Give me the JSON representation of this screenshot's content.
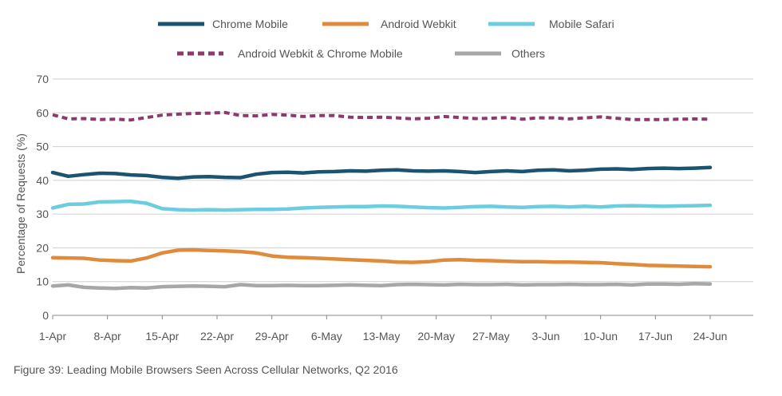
{
  "caption": "Figure 39: Leading Mobile Browsers Seen Across Cellular Networks, Q2 2016",
  "chart_data": {
    "type": "line",
    "ylabel": "Percentage of Requests (%)",
    "xlabel": "",
    "ylim": [
      0,
      70
    ],
    "yticks": [
      0,
      10,
      20,
      30,
      40,
      50,
      60,
      70
    ],
    "grid": true,
    "legend_position": "top",
    "x_tick_labels": [
      "1-Apr",
      "8-Apr",
      "15-Apr",
      "22-Apr",
      "29-Apr",
      "6-May",
      "13-May",
      "20-May",
      "27-May",
      "3-Jun",
      "10-Jun",
      "17-Jun",
      "24-Jun"
    ],
    "x_dates": [
      "1-Apr",
      "3-Apr",
      "5-Apr",
      "7-Apr",
      "9-Apr",
      "11-Apr",
      "13-Apr",
      "15-Apr",
      "17-Apr",
      "19-Apr",
      "21-Apr",
      "23-Apr",
      "25-Apr",
      "27-Apr",
      "29-Apr",
      "1-May",
      "3-May",
      "5-May",
      "7-May",
      "9-May",
      "11-May",
      "13-May",
      "15-May",
      "17-May",
      "19-May",
      "21-May",
      "23-May",
      "25-May",
      "27-May",
      "29-May",
      "31-May",
      "2-Jun",
      "4-Jun",
      "6-Jun",
      "8-Jun",
      "10-Jun",
      "12-Jun",
      "14-Jun",
      "16-Jun",
      "18-Jun",
      "20-Jun",
      "22-Jun",
      "24-Jun"
    ],
    "series": [
      {
        "name": "Chrome Mobile",
        "color": "#1b5470",
        "dashed": false,
        "values": [
          42.3,
          41.2,
          41.7,
          42.1,
          42.0,
          41.6,
          41.4,
          40.9,
          40.6,
          41.0,
          41.1,
          40.9,
          40.8,
          41.8,
          42.3,
          42.4,
          42.2,
          42.5,
          42.6,
          42.8,
          42.7,
          43.0,
          43.1,
          42.8,
          42.7,
          42.8,
          42.6,
          42.3,
          42.6,
          42.8,
          42.6,
          43.0,
          43.1,
          42.8,
          43.0,
          43.3,
          43.4,
          43.2,
          43.5,
          43.6,
          43.5,
          43.6,
          43.8
        ]
      },
      {
        "name": "Android Webkit",
        "color": "#e08a3c",
        "dashed": false,
        "values": [
          17.1,
          17.0,
          16.9,
          16.4,
          16.2,
          16.1,
          17.0,
          18.5,
          19.3,
          19.4,
          19.2,
          19.1,
          18.9,
          18.5,
          17.6,
          17.2,
          17.1,
          16.9,
          16.7,
          16.5,
          16.3,
          16.1,
          15.8,
          15.7,
          15.9,
          16.4,
          16.5,
          16.3,
          16.2,
          16.0,
          15.9,
          15.9,
          15.8,
          15.8,
          15.7,
          15.6,
          15.3,
          15.1,
          14.8,
          14.7,
          14.6,
          14.5,
          14.4
        ]
      },
      {
        "name": "Mobile Safari",
        "color": "#6ccde0",
        "dashed": false,
        "values": [
          31.8,
          32.9,
          33.0,
          33.6,
          33.7,
          33.8,
          33.2,
          31.6,
          31.3,
          31.2,
          31.3,
          31.2,
          31.3,
          31.4,
          31.4,
          31.5,
          31.8,
          32.0,
          32.1,
          32.2,
          32.2,
          32.4,
          32.3,
          32.1,
          31.9,
          31.8,
          32.0,
          32.2,
          32.3,
          32.1,
          32.0,
          32.2,
          32.3,
          32.1,
          32.3,
          32.1,
          32.4,
          32.5,
          32.4,
          32.3,
          32.4,
          32.5,
          32.6
        ]
      },
      {
        "name": "Android Webkit & Chrome Mobile",
        "color": "#8b3a6b",
        "dashed": true,
        "values": [
          59.4,
          58.2,
          58.3,
          58.0,
          58.1,
          57.9,
          58.6,
          59.3,
          59.6,
          59.8,
          59.9,
          60.1,
          59.2,
          59.1,
          59.5,
          59.3,
          58.9,
          59.2,
          59.2,
          58.7,
          58.6,
          58.7,
          58.5,
          58.2,
          58.4,
          58.9,
          58.6,
          58.3,
          58.4,
          58.6,
          58.1,
          58.5,
          58.5,
          58.2,
          58.5,
          58.8,
          58.4,
          58.0,
          58.0,
          58.0,
          58.1,
          58.2,
          58.1
        ]
      },
      {
        "name": "Others",
        "color": "#a7a7aa",
        "dashed": false,
        "values": [
          8.7,
          9.0,
          8.3,
          8.1,
          8.0,
          8.2,
          8.1,
          8.5,
          8.6,
          8.7,
          8.6,
          8.5,
          9.1,
          8.8,
          8.8,
          8.9,
          8.8,
          8.8,
          8.9,
          9.0,
          8.9,
          8.8,
          9.1,
          9.2,
          9.1,
          9.0,
          9.2,
          9.1,
          9.1,
          9.2,
          9.0,
          9.1,
          9.1,
          9.2,
          9.1,
          9.1,
          9.2,
          9.0,
          9.3,
          9.3,
          9.2,
          9.4,
          9.3
        ]
      }
    ]
  }
}
